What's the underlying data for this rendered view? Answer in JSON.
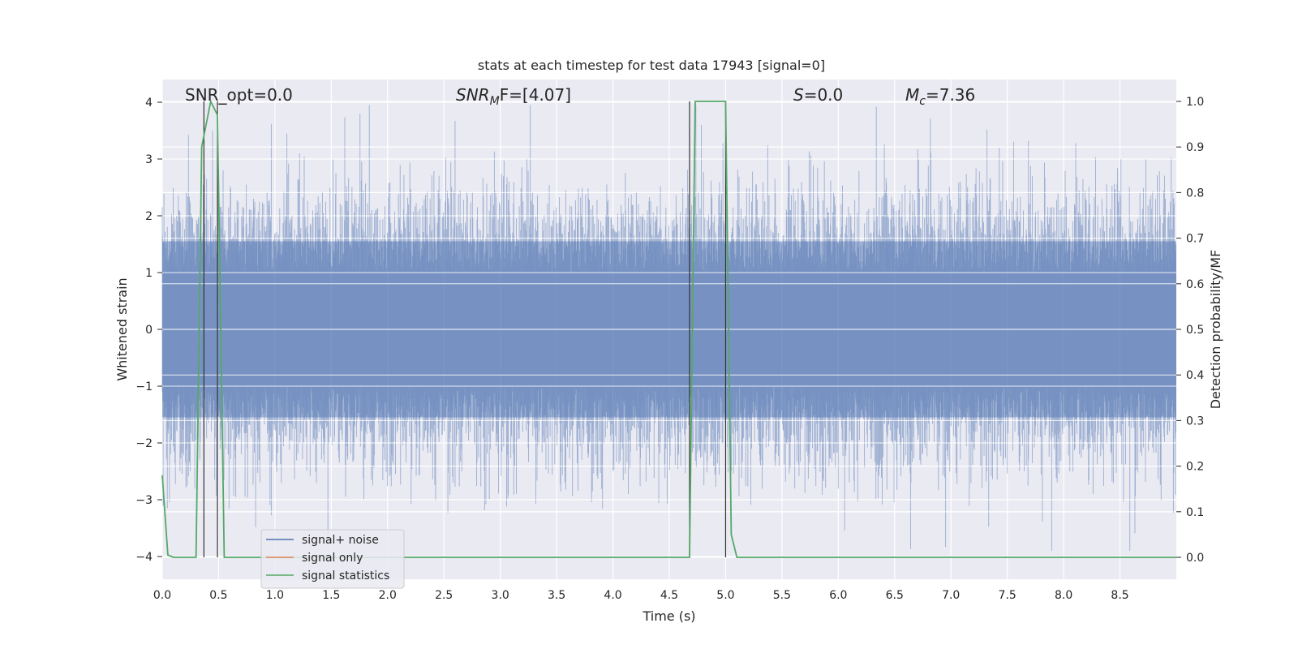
{
  "chart_data": {
    "type": "line",
    "title": "stats at each timestep for test data 17943 [signal=0]",
    "xlabel": "Time (s)",
    "ylabel": "Whitened strain",
    "ylabel_right": "Detection probability/MF",
    "xlim": [
      0,
      9.0
    ],
    "ylim": [
      -4.4,
      4.4
    ],
    "ylim_right": [
      -0.048,
      1.048
    ],
    "x_ticks": [
      0.0,
      0.5,
      1.0,
      1.5,
      2.0,
      2.5,
      3.0,
      3.5,
      4.0,
      4.5,
      5.0,
      5.5,
      6.0,
      6.5,
      7.0,
      7.5,
      8.0,
      8.5
    ],
    "x_tick_labels": [
      "0.0",
      "0.5",
      "1.0",
      "1.5",
      "2.0",
      "2.5",
      "3.0",
      "3.5",
      "4.0",
      "4.5",
      "5.0",
      "5.5",
      "6.0",
      "6.5",
      "7.0",
      "7.5",
      "8.0",
      "8.5"
    ],
    "y_ticks": [
      -4,
      -3,
      -2,
      -1,
      0,
      1,
      2,
      3,
      4
    ],
    "y_tick_labels": [
      "−4",
      "−3",
      "−2",
      "−1",
      "0",
      "1",
      "2",
      "3",
      "4"
    ],
    "y_ticks_right": [
      0.0,
      0.1,
      0.2,
      0.3,
      0.4,
      0.5,
      0.6,
      0.7,
      0.8,
      0.9,
      1.0
    ],
    "y_tick_labels_right": [
      "0.0",
      "0.1",
      "0.2",
      "0.3",
      "0.4",
      "0.5",
      "0.6",
      "0.7",
      "0.8",
      "0.9",
      "1.0"
    ],
    "grid": true,
    "legend_position": "lower-left",
    "annotations": {
      "snr_opt": "SNR_opt=0.0",
      "snr_mf_prefix": "SNR",
      "snr_mf_sub": "M",
      "snr_mf_suffix": "F=[4.07]",
      "s_label": "S",
      "s_value": "=0.0",
      "mc_label": "M",
      "mc_sub": "c",
      "mc_value": "=7.36"
    },
    "series": [
      {
        "name": "signal+ noise",
        "color": "#4c72b0",
        "style": "noise band, amplitude ~ ±1.6 with spikes to ~±4"
      },
      {
        "name": "signal only",
        "color": "#dd8452",
        "points": []
      },
      {
        "name": "signal statistics",
        "color": "#55a868",
        "axis": "right",
        "x": [
          0.0,
          0.05,
          0.1,
          0.3,
          0.35,
          0.43,
          0.49,
          0.55,
          4.68,
          4.73,
          4.8,
          5.0,
          5.05,
          5.1,
          9.0
        ],
        "y": [
          0.18,
          0.005,
          0.0,
          0.0,
          0.9,
          1.0,
          0.97,
          0.0,
          0.0,
          1.0,
          1.0,
          1.0,
          0.05,
          0.0,
          0.0
        ]
      }
    ],
    "vertical_markers": {
      "color": "#333333",
      "x": [
        0.37,
        0.49,
        4.68,
        5.0
      ]
    }
  }
}
